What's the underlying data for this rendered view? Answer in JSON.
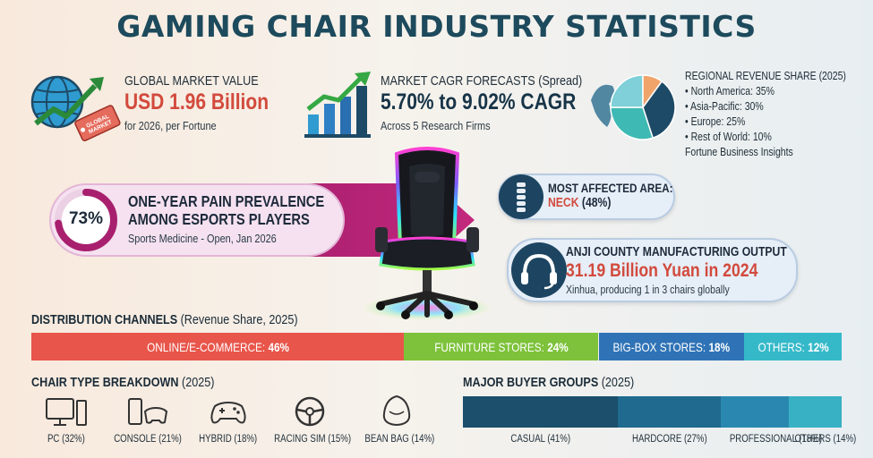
{
  "title": "GAMING CHAIR INDUSTRY STATISTICS",
  "global_market": {
    "label": "GLOBAL MARKET VALUE",
    "value": "USD 1.96 Billion",
    "sub": "for 2026, per Fortune",
    "tag_text": "GLOBAL MARKET VALUE",
    "icon": "globe-growth-icon"
  },
  "cagr": {
    "label": "MARKET CAGR FORECASTS (Spread)",
    "value": "5.70% to 9.02% CAGR",
    "sub": "Across 5 Research Firms",
    "icon": "bar-growth-icon"
  },
  "regional": {
    "title": "REGIONAL REVENUE SHARE (2025)",
    "items": [
      "• North America: 35%",
      "• Asia-Pacific: 30%",
      "• Europe: 25%",
      "• Rest of World: 10%"
    ],
    "source": "Fortune Business Insights"
  },
  "pain": {
    "percent": "73%",
    "line1": "ONE-YEAR PAIN PREVALENCE",
    "line2": "AMONG ESPORTS PLAYERS",
    "source": "Sports Medicine - Open, Jan 2026",
    "fraction": 0.73
  },
  "affected": {
    "label": "MOST AFFECTED AREA:",
    "value_prefix": "NECK",
    "value_suffix": "(48%)",
    "icon": "spine-icon"
  },
  "anji": {
    "label": "ANJI COUNTY MANUFACTURING OUTPUT",
    "value": "31.19 Billion Yuan in 2024",
    "sub": "Xinhua, producing 1 in 3 chairs globally",
    "icon": "headset-icon"
  },
  "distribution": {
    "title": "DISTRIBUTION CHANNELS",
    "title_note": "(Revenue Share, 2025)"
  },
  "chair_types": {
    "title": "CHAIR TYPE BREAKDOWN",
    "title_note": "(2025)",
    "items": [
      {
        "label": "PC (32%)",
        "icon": "pc-icon"
      },
      {
        "label": "CONSOLE (21%)",
        "icon": "console-icon"
      },
      {
        "label": "HYBRID (18%)",
        "icon": "gamepad-icon"
      },
      {
        "label": "RACING SIM (15%)",
        "icon": "steering-wheel-icon"
      },
      {
        "label": "BEAN BAG (14%)",
        "icon": "bean-bag-icon"
      }
    ]
  },
  "buyers": {
    "title": "MAJOR BUYER GROUPS",
    "title_note": "(2025)"
  },
  "chart_data": [
    {
      "type": "pie",
      "title": "REGIONAL REVENUE SHARE (2025)",
      "categories": [
        "North America",
        "Asia-Pacific",
        "Europe",
        "Rest of World"
      ],
      "values": [
        35,
        30,
        25,
        10
      ],
      "colors": [
        "#1d4a66",
        "#3fb9b4",
        "#7fd0d8",
        "#f0a46a"
      ]
    },
    {
      "type": "bar",
      "title": "DISTRIBUTION CHANNELS",
      "categories": [
        "ONLINE/E-COMMERCE:",
        "FURNITURE STORES:",
        "BIG-BOX STORES:",
        "OTHERS:"
      ],
      "values": [
        46,
        24,
        18,
        12
      ],
      "value_labels": [
        "46%",
        "24%",
        "18%",
        "12%"
      ],
      "colors": [
        "#e8554a",
        "#7dc23a",
        "#2f73b6",
        "#35b9c9"
      ]
    },
    {
      "type": "bar",
      "title": "MAJOR BUYER GROUPS",
      "categories": [
        "CASUAL (41%)",
        "HARDCORE (27%)",
        "PROFESSIONAL (18%)",
        "OTHERS (14%)"
      ],
      "values": [
        41,
        27,
        18,
        14
      ],
      "colors": [
        "#1b4f6b",
        "#1f6a8e",
        "#2a88b0",
        "#39b1c4"
      ]
    }
  ]
}
